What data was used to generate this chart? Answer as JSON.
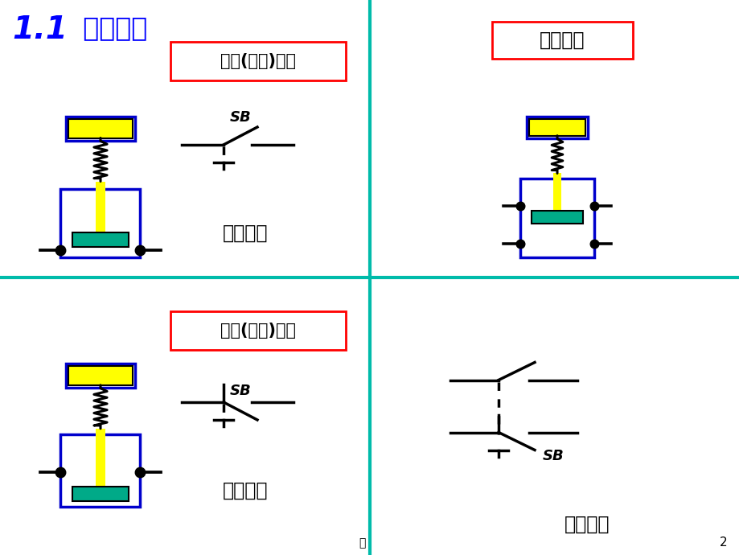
{
  "title_11": "1.1",
  "title_main": "  控制按钮",
  "title_color": "#0000FF",
  "bg_color": "#FFFFFF",
  "divider_color": "#00BBAA",
  "label_no_title": "常开(动合)按钮",
  "label_nc_title": "常闭(动断)按钮",
  "label_compound_title": "复合按钮",
  "label_circuit_symbol": "电路符号",
  "SB_label": "SB",
  "page_num": "2",
  "jing_label": "精"
}
